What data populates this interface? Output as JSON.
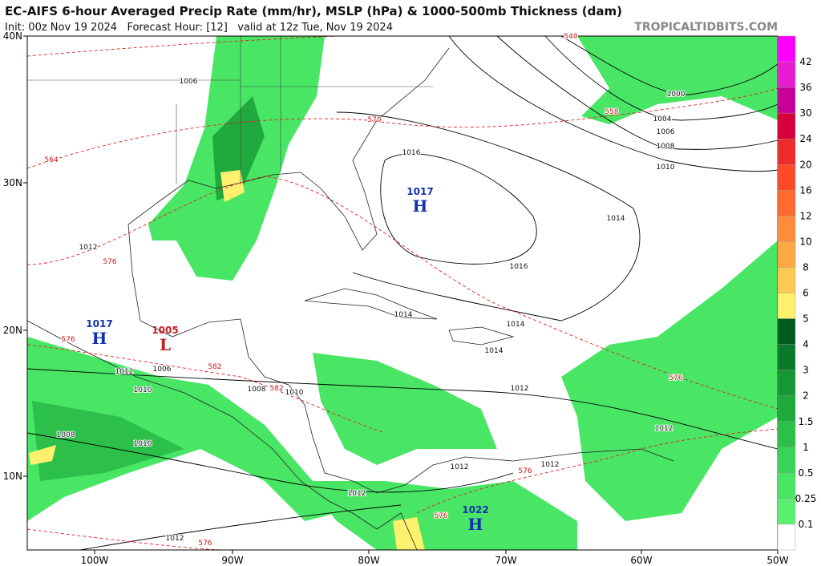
{
  "header": {
    "title": "EC-AIFS 6-hour Averaged Precip Rate (mm/hr), MSLP (hPa) & 1000-500mb Thickness (dam)",
    "subtitle": "Init: 00z Nov 19 2024   Forecast Hour: [12]   valid at 12z Tue, Nov 19 2024",
    "site": "TROPICALTIDBITS.COM"
  },
  "map": {
    "lat_labels": [
      "40N",
      "30N",
      "20N",
      "10N"
    ],
    "lon_labels": [
      "100W",
      "90W",
      "80W",
      "70W",
      "60W",
      "50W"
    ],
    "pressure_centers": [
      {
        "value": "1017",
        "letter": "H"
      },
      {
        "value": "1017",
        "letter": "H"
      },
      {
        "value": "1005",
        "letter": "L"
      },
      {
        "value": "1022",
        "letter": "H"
      }
    ],
    "isobar_labels": [
      "1006",
      "1016",
      "1014",
      "1016",
      "1000",
      "1004",
      "1006",
      "1008",
      "1010",
      "1012",
      "1014",
      "1014",
      "1014",
      "1012",
      "1012",
      "1006",
      "1010",
      "1008",
      "1010",
      "1008",
      "1010",
      "1012",
      "1012",
      "1012",
      "1012",
      "1012"
    ],
    "thickness_labels": [
      "564",
      "570",
      "576",
      "558",
      "576",
      "582",
      "582",
      "576",
      "576",
      "576",
      "576",
      "540"
    ]
  },
  "colorbar": {
    "labels": [
      42,
      36,
      30,
      24,
      20,
      16,
      12,
      10,
      8,
      6,
      5,
      4,
      3,
      2,
      1.5,
      1,
      0.5,
      0.25,
      0.1
    ],
    "colors": [
      "#ff00ff",
      "#e81cd0",
      "#c8009a",
      "#d8003c",
      "#ee2a2a",
      "#ff4a2a",
      "#ff6a30",
      "#ff8c3a",
      "#ffa844",
      "#ffc850",
      "#fff06e",
      "#005a1e",
      "#0a7a2a",
      "#169634",
      "#20aa3e",
      "#2cc04a",
      "#38d456",
      "#48e664",
      "#5cf070",
      "#ffffff"
    ]
  }
}
